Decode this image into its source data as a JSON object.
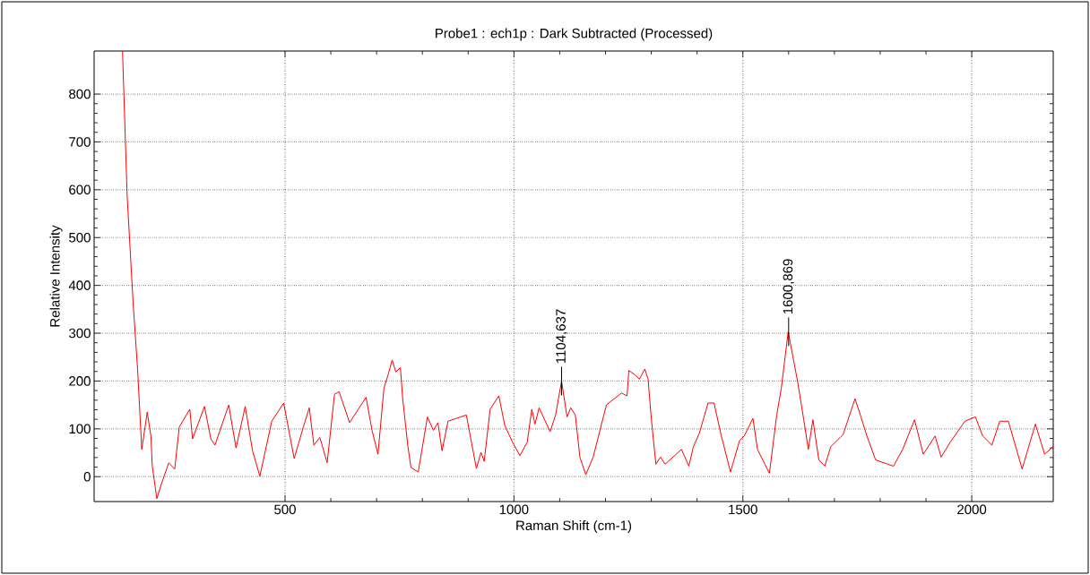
{
  "chart_data": {
    "type": "line",
    "title": "Probe1 : ech1p : Dark Subtracted (Processed)",
    "xlabel": "Raman Shift (cm-1)",
    "ylabel": "Relative Intensity",
    "xlim": [
      83,
      2178
    ],
    "ylim": [
      -52,
      890
    ],
    "xticks": [
      500,
      1000,
      1500,
      2000
    ],
    "yticks": [
      0,
      100,
      200,
      300,
      400,
      500,
      600,
      700,
      800
    ],
    "grid": true,
    "line_style": "solid",
    "marker": "none",
    "series": [
      {
        "color": "#ff0000",
        "x": [
          145,
          155,
          168,
          178,
          187,
          199,
          207,
          210,
          220,
          230,
          246,
          259,
          269,
          292,
          298,
          324,
          338,
          347,
          377,
          393,
          413,
          429,
          445,
          471,
          497,
          520,
          540,
          553,
          563,
          576,
          592,
          608,
          618,
          641,
          677,
          690,
          703,
          716,
          726,
          734,
          742,
          752,
          757,
          768,
          775,
          791,
          811,
          824,
          834,
          843,
          856,
          896,
          918,
          928,
          935,
          948,
          967,
          980,
          997,
          1013,
          1029,
          1039,
          1046,
          1055,
          1079,
          1091,
          1104,
          1116,
          1124,
          1134,
          1144,
          1157,
          1173,
          1202,
          1235,
          1247,
          1251,
          1264,
          1274,
          1286,
          1293,
          1300,
          1310,
          1320,
          1330,
          1366,
          1382,
          1392,
          1405,
          1424,
          1437,
          1453,
          1473,
          1493,
          1503,
          1522,
          1532,
          1558,
          1574,
          1584,
          1599,
          1620,
          1633,
          1643,
          1653,
          1666,
          1679,
          1692,
          1719,
          1745,
          1758,
          1771,
          1790,
          1829,
          1849,
          1875,
          1894,
          1920,
          1933,
          1953,
          1985,
          2008,
          2024,
          2044,
          2061,
          2080,
          2110,
          2139,
          2159,
          2178
        ],
        "values": [
          890,
          590,
          366,
          223,
          57,
          135,
          85,
          22,
          -46,
          -15,
          29,
          16,
          104,
          141,
          79,
          147,
          79,
          66,
          150,
          60,
          147,
          54,
          1,
          116,
          154,
          38,
          104,
          144,
          66,
          82,
          29,
          172,
          178,
          113,
          166,
          97,
          47,
          185,
          216,
          244,
          219,
          228,
          163,
          66,
          19,
          10,
          125,
          97,
          113,
          54,
          116,
          129,
          17,
          51,
          32,
          141,
          169,
          107,
          72,
          44,
          72,
          141,
          110,
          144,
          94,
          129,
          200,
          125,
          144,
          129,
          41,
          4,
          41,
          150,
          175,
          169,
          222,
          213,
          204,
          225,
          204,
          122,
          26,
          41,
          26,
          57,
          22,
          63,
          91,
          154,
          154,
          85,
          10,
          76,
          85,
          122,
          57,
          7,
          129,
          185,
          303,
          197,
          119,
          57,
          119,
          35,
          22,
          63,
          88,
          163,
          125,
          85,
          35,
          22,
          57,
          119,
          47,
          85,
          41,
          72,
          116,
          125,
          85,
          66,
          116,
          116,
          16,
          110,
          47,
          63
        ]
      }
    ],
    "annotations": [
      {
        "text": "1104,637",
        "x": 1104,
        "y": 200
      },
      {
        "text": "1600,869",
        "x": 1600,
        "y": 303
      }
    ]
  }
}
